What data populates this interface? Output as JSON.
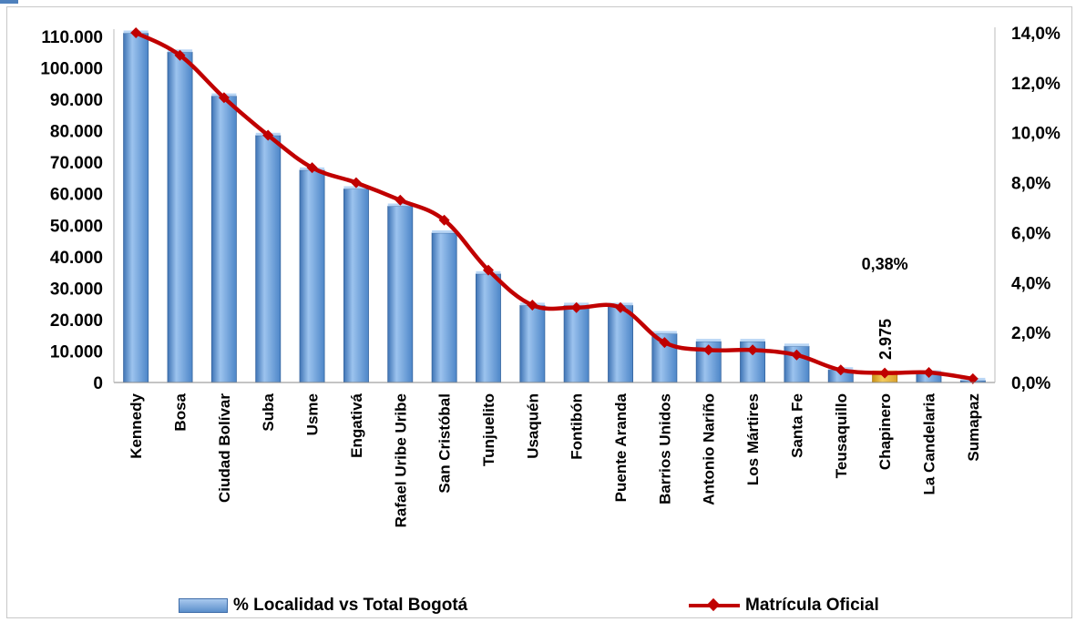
{
  "chart_data": {
    "type": "bar",
    "categories": [
      "Kennedy",
      "Bosa",
      "Ciudad Bolívar",
      "Suba",
      "Usme",
      "Engativá",
      "Rafael Uribe Uribe",
      "San Cristóbal",
      "Tunjuelito",
      "Usaquén",
      "Fontibón",
      "Puente Aranda",
      "Barrios Unidos",
      "Antonio Nariño",
      "Los Mártires",
      "Santa Fe",
      "Teusaquillo",
      "Chapinero",
      "La Candelaria",
      "Sumapaz"
    ],
    "series": [
      {
        "name": "% Localidad vs Total Bogotá",
        "type": "bar",
        "axis": "left",
        "values": [
          111000,
          105000,
          91000,
          78500,
          67500,
          61500,
          56000,
          47500,
          34500,
          24500,
          24500,
          24500,
          15500,
          13000,
          13000,
          11500,
          4000,
          2975,
          3000,
          600
        ],
        "color": "#5b9bd5",
        "highlight_index": 17,
        "highlight_color": "#e8b12a"
      },
      {
        "name": "Matrícula Oficial",
        "type": "line",
        "axis": "right",
        "values": [
          14.0,
          13.1,
          11.4,
          9.9,
          8.6,
          8.0,
          7.3,
          6.5,
          4.5,
          3.1,
          3.0,
          3.0,
          1.6,
          1.3,
          1.3,
          1.1,
          0.5,
          0.38,
          0.4,
          0.15
        ],
        "color": "#c00000"
      }
    ],
    "y_left": {
      "ticks": [
        0,
        10000,
        20000,
        30000,
        40000,
        50000,
        60000,
        70000,
        80000,
        90000,
        100000,
        110000
      ],
      "tick_labels": [
        "0",
        "10.000",
        "20.000",
        "30.000",
        "40.000",
        "50.000",
        "60.000",
        "70.000",
        "80.000",
        "90.000",
        "100.000",
        "110.000"
      ]
    },
    "y_right": {
      "ticks": [
        0,
        2,
        4,
        6,
        8,
        10,
        12,
        14
      ],
      "tick_labels": [
        "0,0%",
        "2,0%",
        "4,0%",
        "6,0%",
        "8,0%",
        "10,0%",
        "12,0%",
        "14,0%"
      ]
    },
    "annotations": [
      {
        "text": "0,38%",
        "category": "Chapinero",
        "series": "Matrícula Oficial"
      },
      {
        "text": "2.975",
        "category": "Chapinero",
        "series": "% Localidad vs Total Bogotá"
      }
    ],
    "legend_position": "bottom",
    "grid": false
  },
  "legend": {
    "bar_label": "% Localidad vs Total Bogotá",
    "line_label": "Matrícula Oficial"
  }
}
